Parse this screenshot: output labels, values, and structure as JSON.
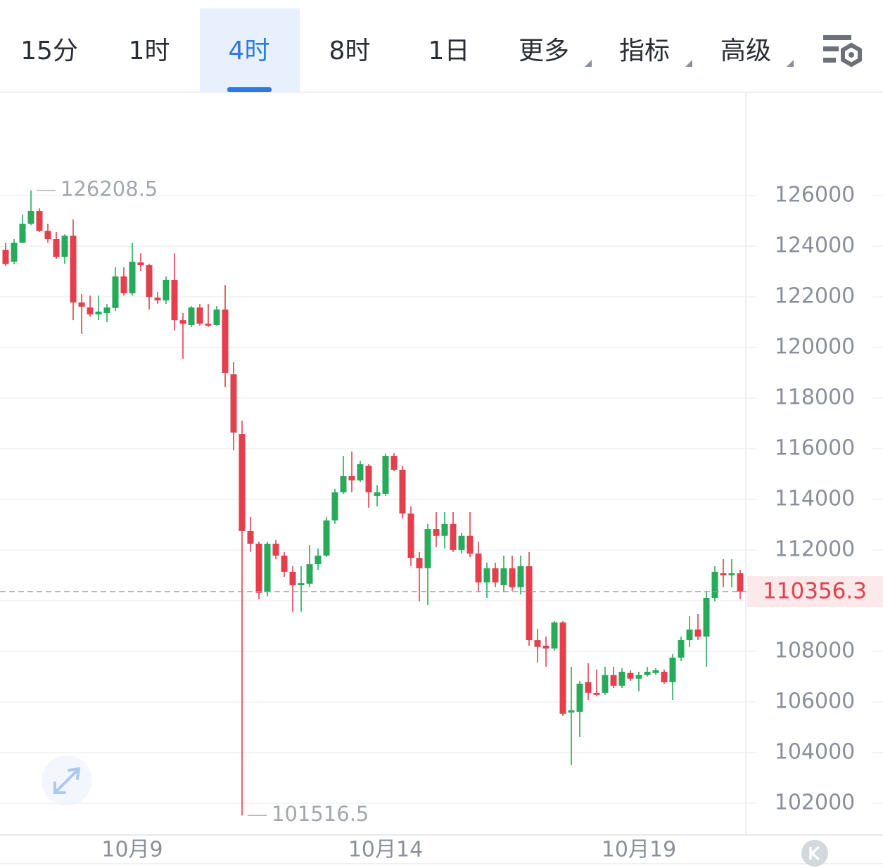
{
  "chart_data": {
    "type": "candlestick",
    "tabs": [
      {
        "label": "15分"
      },
      {
        "label": "1时"
      },
      {
        "label": "4时"
      },
      {
        "label": "8时"
      },
      {
        "label": "1日"
      },
      {
        "label": "更多",
        "dropdown": true
      },
      {
        "label": "指标",
        "dropdown": true
      },
      {
        "label": "高级",
        "dropdown": true
      }
    ],
    "active_tab": 2,
    "categories": [
      null,
      null,
      null,
      null,
      null,
      null,
      null,
      null,
      null,
      null,
      null,
      null,
      null,
      null,
      null,
      "10月9",
      null,
      null,
      null,
      null,
      null,
      null,
      null,
      null,
      null,
      null,
      null,
      null,
      null,
      null,
      null,
      null,
      null,
      null,
      null,
      null,
      null,
      null,
      null,
      null,
      null,
      null,
      null,
      null,
      null,
      "10月14",
      null,
      null,
      null,
      null,
      null,
      null,
      null,
      null,
      null,
      null,
      null,
      null,
      null,
      null,
      null,
      null,
      null,
      null,
      null,
      null,
      null,
      null,
      null,
      null,
      null,
      null,
      null,
      null,
      null,
      "10月19",
      null,
      null,
      null,
      null,
      null,
      null,
      null,
      null,
      null,
      null,
      null,
      null
    ],
    "open": [
      123860,
      123390,
      124140,
      124890,
      125390,
      124610,
      124280,
      123580,
      124420,
      121780,
      121580,
      121310,
      121360,
      121560,
      122810,
      122140,
      123360,
      123250,
      121970,
      121860,
      122670,
      121080,
      120890,
      121580,
      120940,
      120890,
      121500,
      118940,
      116580,
      112750,
      112250,
      110330,
      112250,
      111780,
      111140,
      110610,
      110670,
      111440,
      111780,
      113170,
      114280,
      114920,
      114750,
      115330,
      114140,
      114220,
      115720,
      115170,
      113440,
      111690,
      111280,
      112830,
      112560,
      113030,
      112000,
      112560,
      111860,
      110720,
      111280,
      110610,
      111280,
      110530,
      111360,
      108440,
      108220,
      108110,
      109140,
      105580,
      105610,
      106780,
      106360,
      106360,
      107060,
      106640,
      107140,
      106920,
      107060,
      107140,
      107190,
      106780,
      107750,
      108440,
      108860,
      108580,
      110110,
      111080,
      111000,
      111080
    ],
    "high": [
      124140,
      124280,
      125250,
      126208.5,
      125500,
      124890,
      124560,
      124470,
      125060,
      122110,
      122050,
      122050,
      121720,
      123170,
      123170,
      124140,
      123720,
      123310,
      122190,
      122810,
      123720,
      121360,
      121640,
      121720,
      121720,
      121640,
      122470,
      119420,
      117110,
      113310,
      112330,
      112330,
      112390,
      111920,
      111360,
      111360,
      112190,
      112060,
      113310,
      114420,
      115720,
      115890,
      115530,
      115390,
      114560,
      115810,
      115830,
      115330,
      113720,
      111920,
      113030,
      113500,
      113500,
      113500,
      112670,
      113500,
      112330,
      111500,
      111500,
      111780,
      111780,
      111780,
      111920,
      108890,
      108580,
      109190,
      109190,
      107390,
      106830,
      107530,
      107280,
      107390,
      107390,
      107330,
      107250,
      107190,
      107390,
      107330,
      107280,
      107890,
      108580,
      109390,
      109470,
      110390,
      111360,
      111640,
      111640,
      111220
    ],
    "low": [
      123220,
      123300,
      124140,
      124830,
      124560,
      124140,
      123500,
      123300,
      121080,
      120530,
      121220,
      121080,
      121000,
      121440,
      122050,
      122050,
      123030,
      121500,
      121720,
      121720,
      120670,
      119560,
      120810,
      120860,
      120810,
      120860,
      118440,
      115940,
      101516.5,
      111920,
      110060,
      110170,
      111640,
      110940,
      109560,
      109560,
      110530,
      111220,
      111720,
      113030,
      114220,
      114280,
      114690,
      113670,
      113720,
      114140,
      115110,
      113250,
      111360,
      109970,
      109830,
      112110,
      112060,
      111920,
      111860,
      111720,
      110330,
      110110,
      110530,
      110330,
      110390,
      110250,
      108220,
      107560,
      107390,
      108030,
      105440,
      103500,
      104610,
      106080,
      106220,
      106280,
      106550,
      106550,
      106830,
      106420,
      107000,
      107060,
      106720,
      106080,
      107610,
      108170,
      108440,
      107390,
      109970,
      110530,
      110530,
      110060
    ],
    "close": [
      123300,
      124140,
      124890,
      125390,
      124610,
      124280,
      123580,
      124420,
      121780,
      121610,
      121310,
      121420,
      121580,
      122810,
      122140,
      123390,
      123250,
      122000,
      121860,
      122670,
      121080,
      120940,
      121580,
      120940,
      120860,
      121500,
      119000,
      116640,
      112750,
      112250,
      110310,
      112250,
      111780,
      111140,
      110610,
      110690,
      111440,
      111780,
      113170,
      114280,
      114920,
      114750,
      115390,
      114280,
      114280,
      115720,
      115170,
      113440,
      111690,
      111280,
      112830,
      112560,
      113030,
      112000,
      112560,
      111860,
      110720,
      111280,
      110720,
      111280,
      110530,
      111360,
      108440,
      108170,
      108110,
      109140,
      105530,
      105670,
      106720,
      106360,
      106280,
      107060,
      106640,
      107190,
      106920,
      107060,
      107190,
      107250,
      106780,
      107750,
      108440,
      108860,
      108580,
      110110,
      111140,
      111000,
      111080,
      110356.3
    ],
    "up_color": "#27ab5a",
    "down_color": "#e2404d",
    "ylim": [
      100800,
      130060
    ],
    "yticks": [
      102000,
      104000,
      106000,
      108000,
      110000,
      112000,
      114000,
      116000,
      118000,
      120000,
      122000,
      124000,
      126000
    ],
    "grid": true
  }
}
